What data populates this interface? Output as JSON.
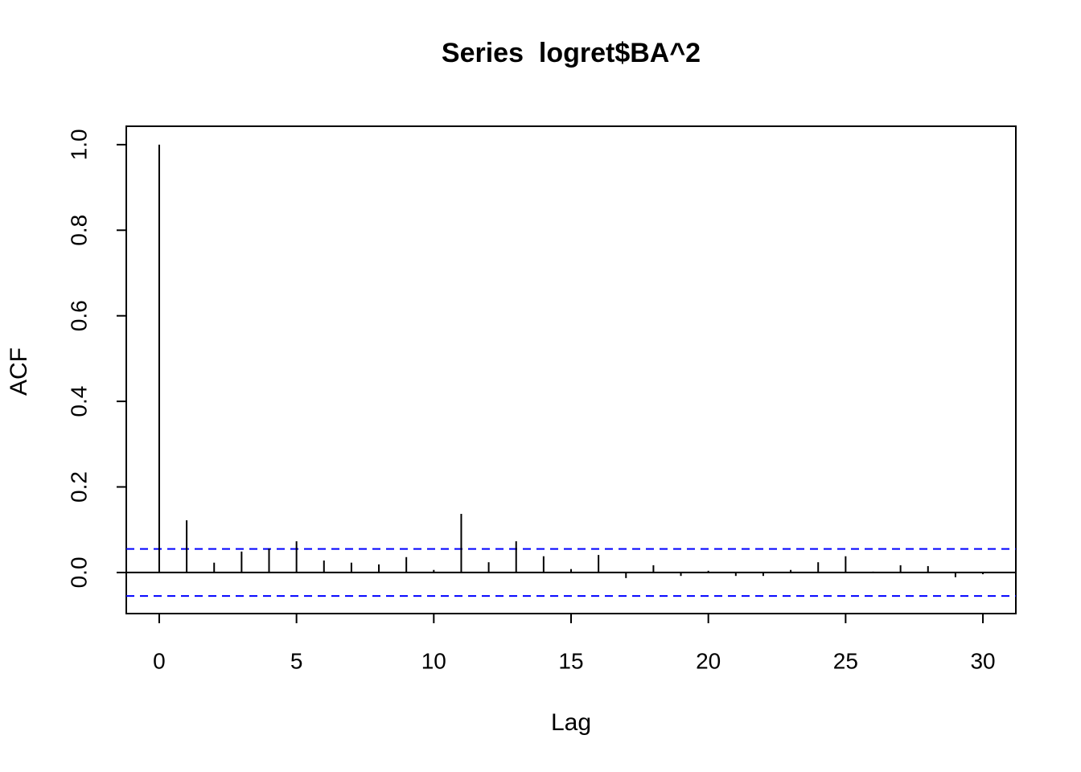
{
  "chart_data": {
    "type": "acf",
    "title": "Series  logret$BA^2",
    "x_label": "Lag",
    "y_label": "ACF",
    "x": [
      0,
      1,
      2,
      3,
      4,
      5,
      6,
      7,
      8,
      9,
      10,
      11,
      12,
      13,
      14,
      15,
      16,
      17,
      18,
      19,
      20,
      21,
      22,
      23,
      24,
      25,
      26,
      27,
      28,
      29,
      30
    ],
    "values": [
      1.0,
      0.122,
      0.023,
      0.049,
      0.056,
      0.073,
      0.028,
      0.023,
      0.019,
      0.036,
      0.006,
      0.137,
      0.024,
      0.073,
      0.038,
      0.008,
      0.041,
      -0.013,
      0.017,
      -0.008,
      0.004,
      -0.008,
      -0.008,
      0.006,
      0.024,
      0.038,
      0.002,
      0.017,
      0.015,
      -0.011,
      -0.004
    ],
    "color": "#000000",
    "confidence_bounds": [
      0.055,
      -0.055
    ],
    "confidence_color": "#0000ff",
    "xlim": [
      -1.2,
      31.2
    ],
    "ylim": [
      -0.096,
      1.043
    ],
    "xticks": [
      0,
      5,
      10,
      15,
      20,
      25,
      30
    ],
    "yticks": [
      {
        "value": 0,
        "label": "0.0"
      },
      0.2,
      0.4,
      0.6,
      0.8,
      {
        "value": 1,
        "label": "1.0"
      }
    ]
  }
}
